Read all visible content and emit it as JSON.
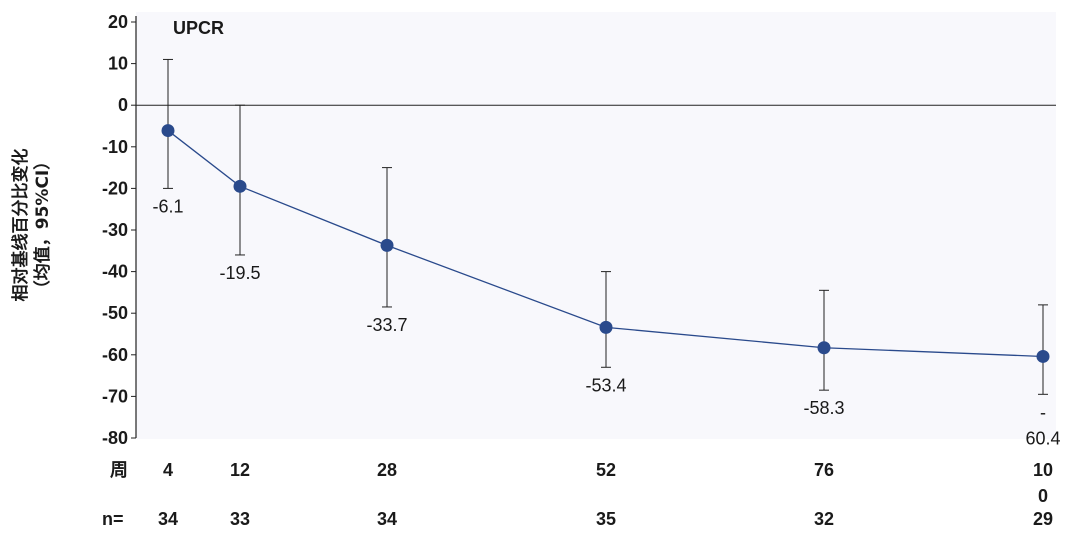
{
  "chart_data": {
    "type": "line",
    "title": "UPCR",
    "ylabel_line1": "相对基线百分比变化",
    "ylabel_line2": "（均值，95%CI）",
    "ylim": [
      -80,
      20
    ],
    "yticks": [
      20,
      10,
      0,
      -10,
      -20,
      -30,
      -40,
      -50,
      -60,
      -70,
      -80
    ],
    "ytick_labels": [
      "20",
      "10",
      "0",
      "-10",
      "-20",
      "-30",
      "-40",
      "-50",
      "-60",
      "-70",
      "-80"
    ],
    "x_row_label": "周",
    "n_row_label": "n=",
    "x": [
      4,
      12,
      28,
      52,
      76,
      100
    ],
    "x_tick_labels": [
      [
        "4"
      ],
      [
        "12"
      ],
      [
        "28"
      ],
      [
        "52"
      ],
      [
        "76"
      ],
      [
        "10",
        "0"
      ]
    ],
    "n": [
      "34",
      "33",
      "34",
      "35",
      "32",
      "29"
    ],
    "series": [
      {
        "values": [
          -6.1,
          -19.5,
          -33.7,
          -53.4,
          -58.3,
          -60.4
        ],
        "ci_upper": [
          11,
          0,
          -15,
          -40,
          -44.5,
          -48
        ],
        "ci_lower": [
          -20,
          -36,
          -48.5,
          -63,
          -68.5,
          -69.5
        ],
        "data_labels": [
          [
            "-6.1"
          ],
          [
            "-19.5"
          ],
          [
            "-33.7"
          ],
          [
            "-53.4"
          ],
          [
            "-58.3"
          ],
          [
            "-",
            "60.4"
          ]
        ]
      }
    ],
    "colors": {
      "marker": "#2a4a8c",
      "line": "#2a4a8c",
      "errorbar": "#222222",
      "axis": "#222222",
      "plot_bg": "#f8f8fc"
    },
    "grid": false,
    "zero_line": true
  }
}
